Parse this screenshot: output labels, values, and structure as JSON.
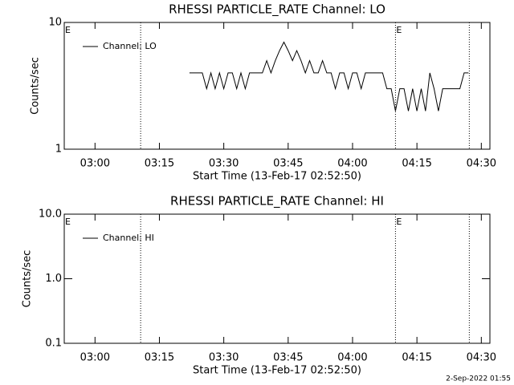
{
  "chart_data": [
    {
      "type": "line",
      "title": "RHESSI PARTICLE_RATE Channel: LO",
      "x_label": "Start Time (13-Feb-17 02:52:50)",
      "y_label": "Counts/sec",
      "log_y": true,
      "xlim": [
        "02:52:50",
        "04:32"
      ],
      "ylim": [
        1,
        10
      ],
      "yticks": [
        1,
        10
      ],
      "xticks": [
        "03:00",
        "03:15",
        "03:30",
        "03:45",
        "04:00",
        "04:15",
        "04:30"
      ],
      "marker_lines": [
        "03:10:38",
        "04:10",
        "04:27:12"
      ],
      "events": [
        {
          "x": "02:52:50",
          "label": "E"
        },
        {
          "x": "04:10",
          "label": "E"
        }
      ],
      "series": [
        {
          "name": "Channel: LO",
          "color": "#000000",
          "x": [
            "03:22",
            "03:23",
            "03:24",
            "03:25",
            "03:26",
            "03:27",
            "03:28",
            "03:29",
            "03:30",
            "03:31",
            "03:32",
            "03:33",
            "03:34",
            "03:35",
            "03:36",
            "03:37",
            "03:38",
            "03:39",
            "03:40",
            "03:41",
            "03:42",
            "03:43",
            "03:44",
            "03:45",
            "03:46",
            "03:47",
            "03:48",
            "03:49",
            "03:50",
            "03:51",
            "03:52",
            "03:53",
            "03:54",
            "03:55",
            "03:56",
            "03:57",
            "03:58",
            "03:59",
            "04:00",
            "04:01",
            "04:02",
            "04:03",
            "04:04",
            "04:05",
            "04:06",
            "04:07",
            "04:08",
            "04:09",
            "04:10",
            "04:11",
            "04:12",
            "04:13",
            "04:14",
            "04:15",
            "04:16",
            "04:17",
            "04:18",
            "04:19",
            "04:20",
            "04:21",
            "04:22",
            "04:23",
            "04:24",
            "04:25",
            "04:26",
            "04:27"
          ],
          "values": [
            4,
            4,
            4,
            4,
            3,
            4,
            3,
            4,
            3,
            4,
            4,
            3,
            4,
            3,
            4,
            4,
            4,
            4,
            5,
            4,
            5,
            6,
            7,
            6,
            5,
            6,
            5,
            4,
            5,
            4,
            4,
            5,
            4,
            4,
            3,
            4,
            4,
            3,
            4,
            4,
            3,
            4,
            4,
            4,
            4,
            4,
            3,
            3,
            2,
            3,
            3,
            2,
            3,
            2,
            3,
            2,
            4,
            3,
            2,
            3,
            3,
            3,
            3,
            3,
            4,
            4
          ]
        }
      ]
    },
    {
      "type": "line",
      "title": "RHESSI PARTICLE_RATE Channel: HI",
      "x_label": "Start Time (13-Feb-17 02:52:50)",
      "y_label": "Counts/sec",
      "log_y": true,
      "xlim": [
        "02:52:50",
        "04:32"
      ],
      "ylim": [
        0.1,
        10
      ],
      "yticks": [
        {
          "value": 0.1,
          "label": "0.1"
        },
        {
          "value": 1,
          "label": "1.0"
        },
        {
          "value": 10,
          "label": "10.0"
        }
      ],
      "xticks": [
        "03:00",
        "03:15",
        "03:30",
        "03:45",
        "04:00",
        "04:15",
        "04:30"
      ],
      "marker_lines": [
        "03:10:38",
        "04:10",
        "04:27:12"
      ],
      "events": [
        {
          "x": "02:52:50",
          "label": "E"
        },
        {
          "x": "04:10",
          "label": "E"
        }
      ],
      "series": [
        {
          "name": "Channel: HI",
          "color": "#000000",
          "x": [],
          "values": []
        }
      ]
    }
  ],
  "footer": "2-Sep-2022 01:55"
}
